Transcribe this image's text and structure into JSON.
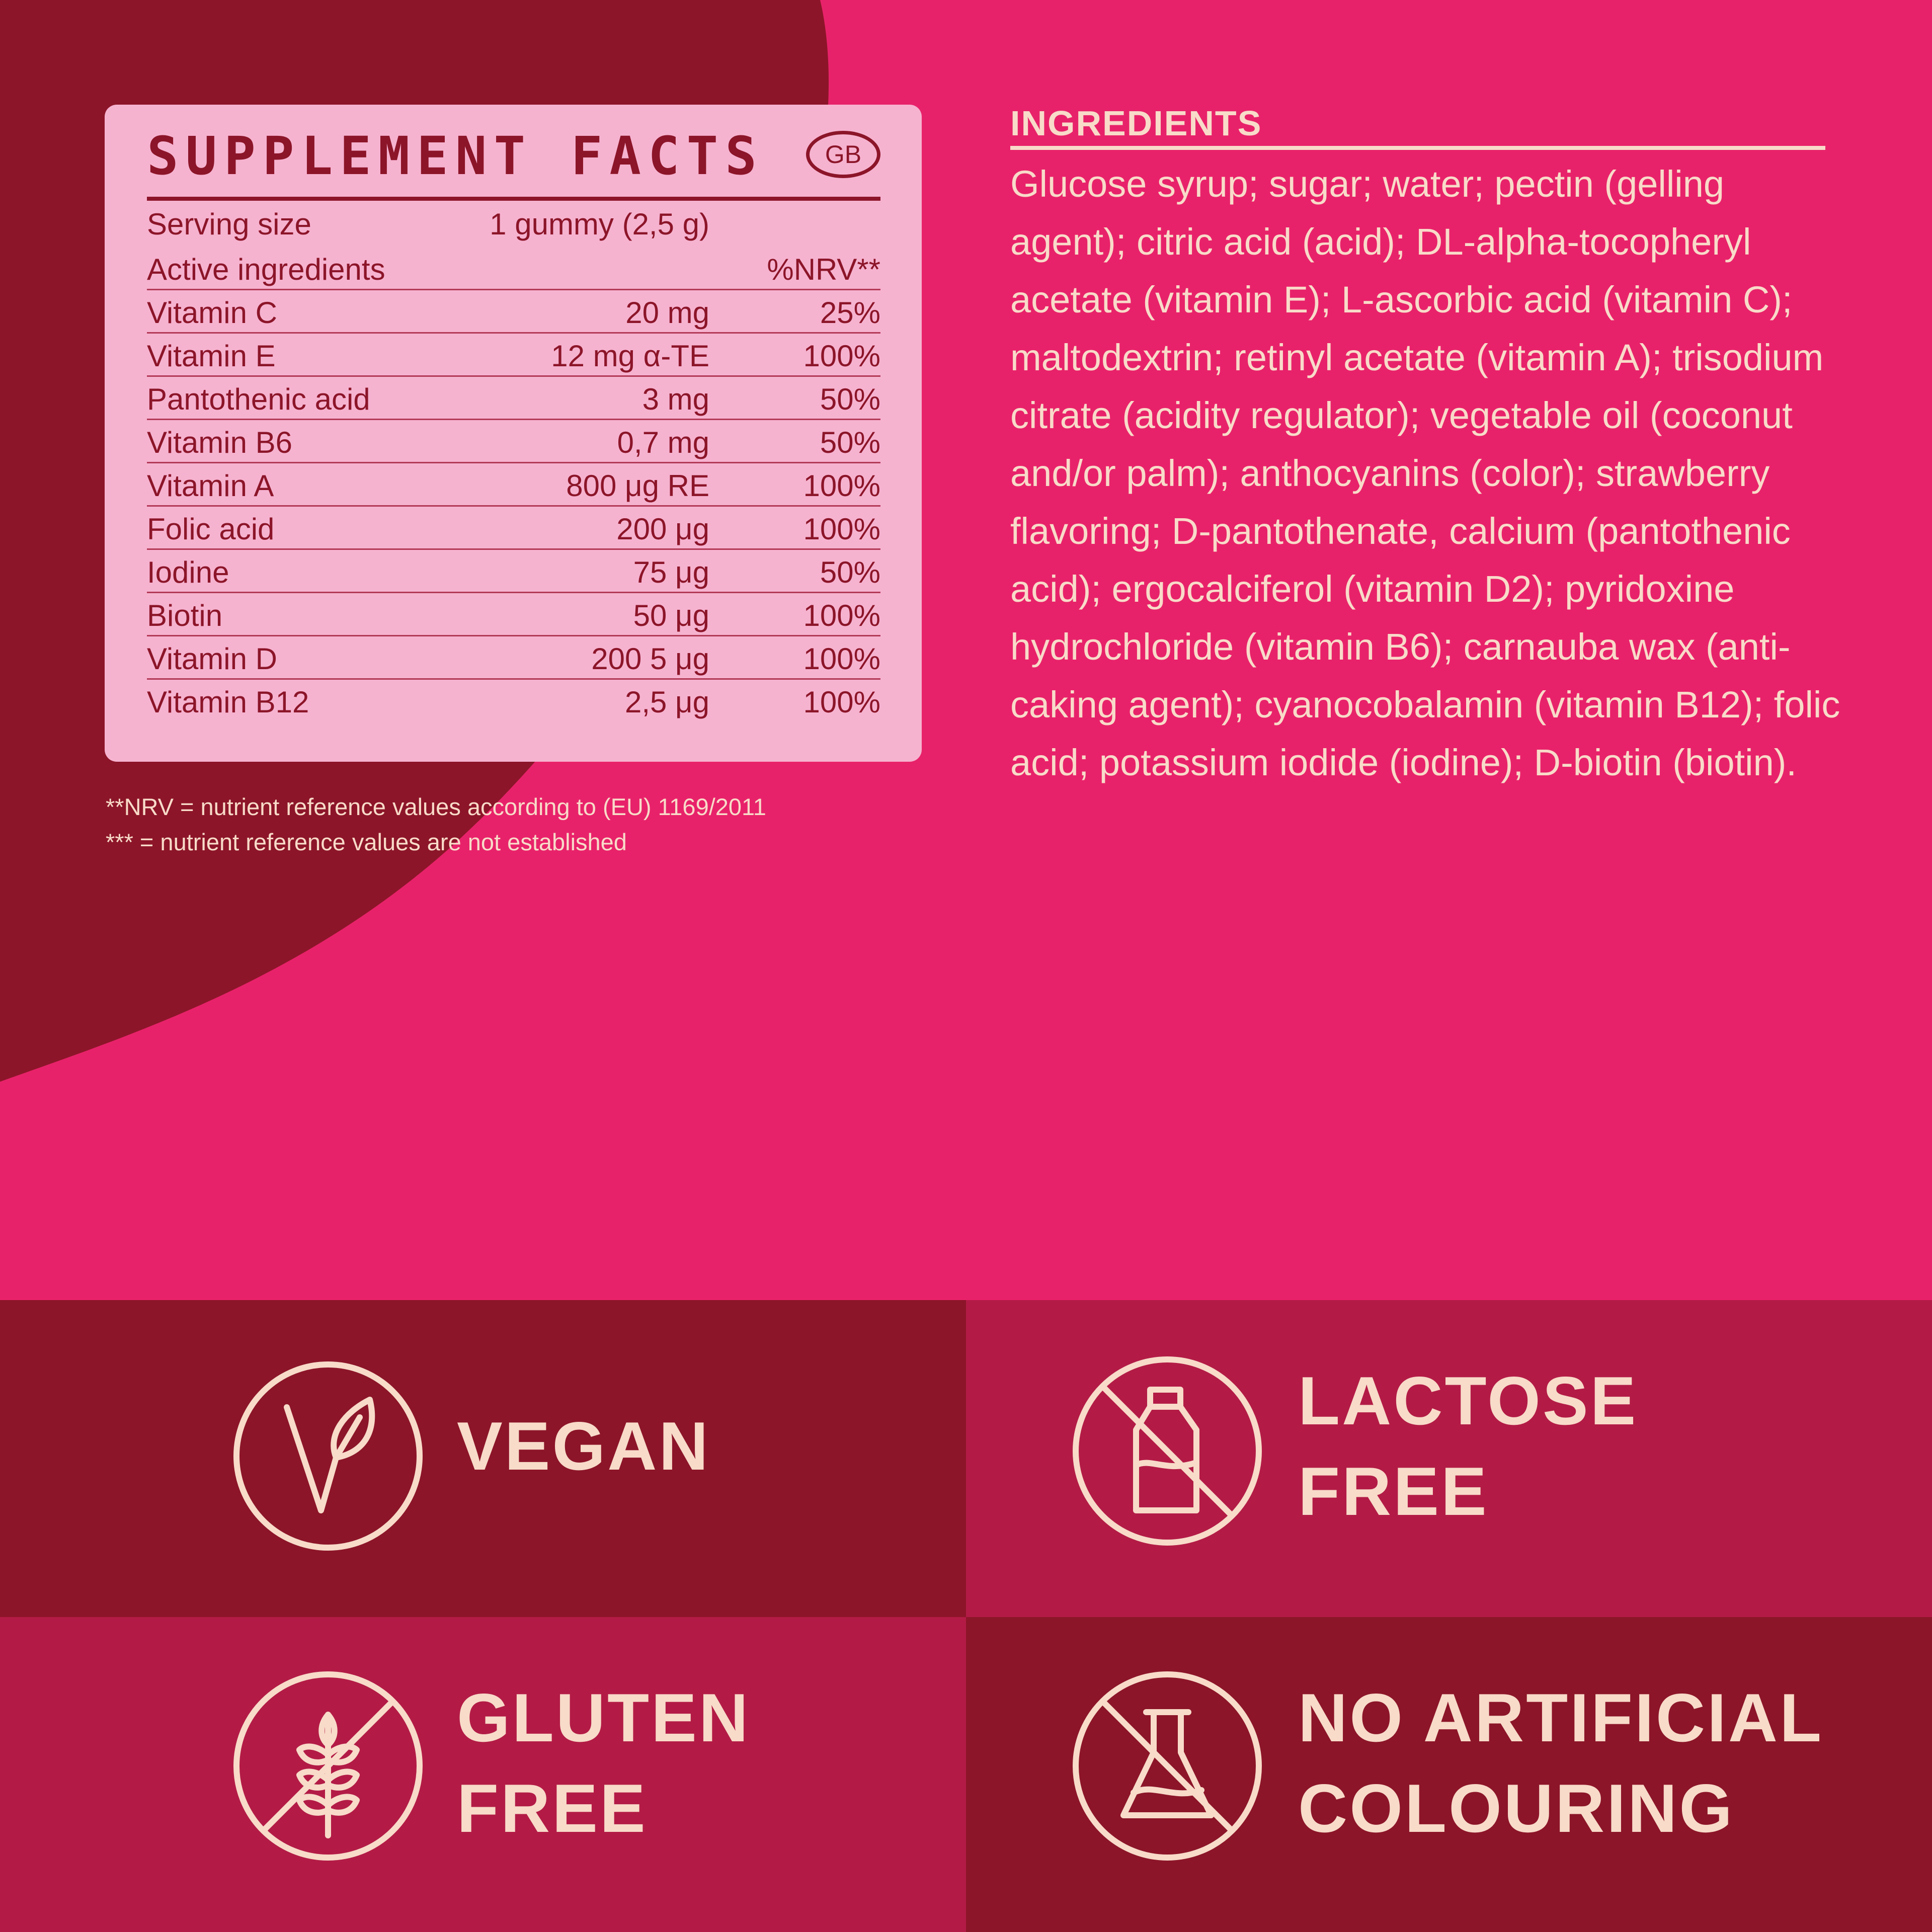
{
  "colors": {
    "dark_red": "#8c1529",
    "pink": "#e8226a",
    "light_pink": "#f6b3d0",
    "crimson": "#b31b46",
    "cream": "#f8dbc9"
  },
  "facts": {
    "title": "SUPPLEMENT FACTS",
    "badge": "GB",
    "serving_label": "Serving size",
    "serving_value": "1 gummy (2,5 g)",
    "active_label": "Active ingredients",
    "nrv_label": "%NRV**",
    "rows": [
      {
        "name": "Vitamin C",
        "amount": "20 mg",
        "nrv": "25%"
      },
      {
        "name": "Vitamin E",
        "amount": "12 mg α-TE",
        "nrv": "100%"
      },
      {
        "name": "Pantothenic acid",
        "amount": "3 mg",
        "nrv": "50%"
      },
      {
        "name": "Vitamin B6",
        "amount": "0,7 mg",
        "nrv": "50%"
      },
      {
        "name": "Vitamin A",
        "amount": "800 μg RE",
        "nrv": "100%"
      },
      {
        "name": "Folic acid",
        "amount": "200 μg",
        "nrv": "100%"
      },
      {
        "name": "Iodine",
        "amount": "75 μg",
        "nrv": "50%"
      },
      {
        "name": "Biotin",
        "amount": "50 μg",
        "nrv": "100%"
      },
      {
        "name": "Vitamin D",
        "amount": "200 5 μg",
        "nrv": "100%"
      },
      {
        "name": "Vitamin B12",
        "amount": "2,5 μg",
        "nrv": "100%"
      }
    ],
    "footnote_1": "**NRV = nutrient reference values  according to (EU) 1169/2011",
    "footnote_2": "*** = nutrient reference values are not established"
  },
  "ingredients": {
    "title": "INGREDIENTS",
    "text": "Glucose syrup; sugar; water; pectin (gelling agent); citric acid (acid); DL-alpha-tocopheryl acetate (vitamin E); L-ascorbic acid (vitamin C); maltodextrin; retinyl acetate (vitamin A); trisodium citrate (acidity regulator); vegetable oil (coconut and/or palm); anthocyanins (color); strawberry flavoring; D-pantothenate, calcium (pantothenic acid); ergocalciferol (vitamin D2); pyridoxine hydrochloride (vitamin B6); carnauba wax (anti-caking agent); cyanocobalamin (vitamin B12); folic acid; potassium iodide (iodine); D-biotin (biotin)."
  },
  "badges": {
    "vegan": {
      "label": "VEGAN",
      "icon": "vegan-leaf-icon"
    },
    "lactose": {
      "label": "LACTOSE\nFREE",
      "icon": "no-milk-bottle-icon"
    },
    "gluten": {
      "label": "GLUTEN\nFREE",
      "icon": "no-wheat-icon"
    },
    "colouring": {
      "label": "NO ARTIFICIAL\nCOLOURING",
      "icon": "no-flask-icon"
    }
  }
}
